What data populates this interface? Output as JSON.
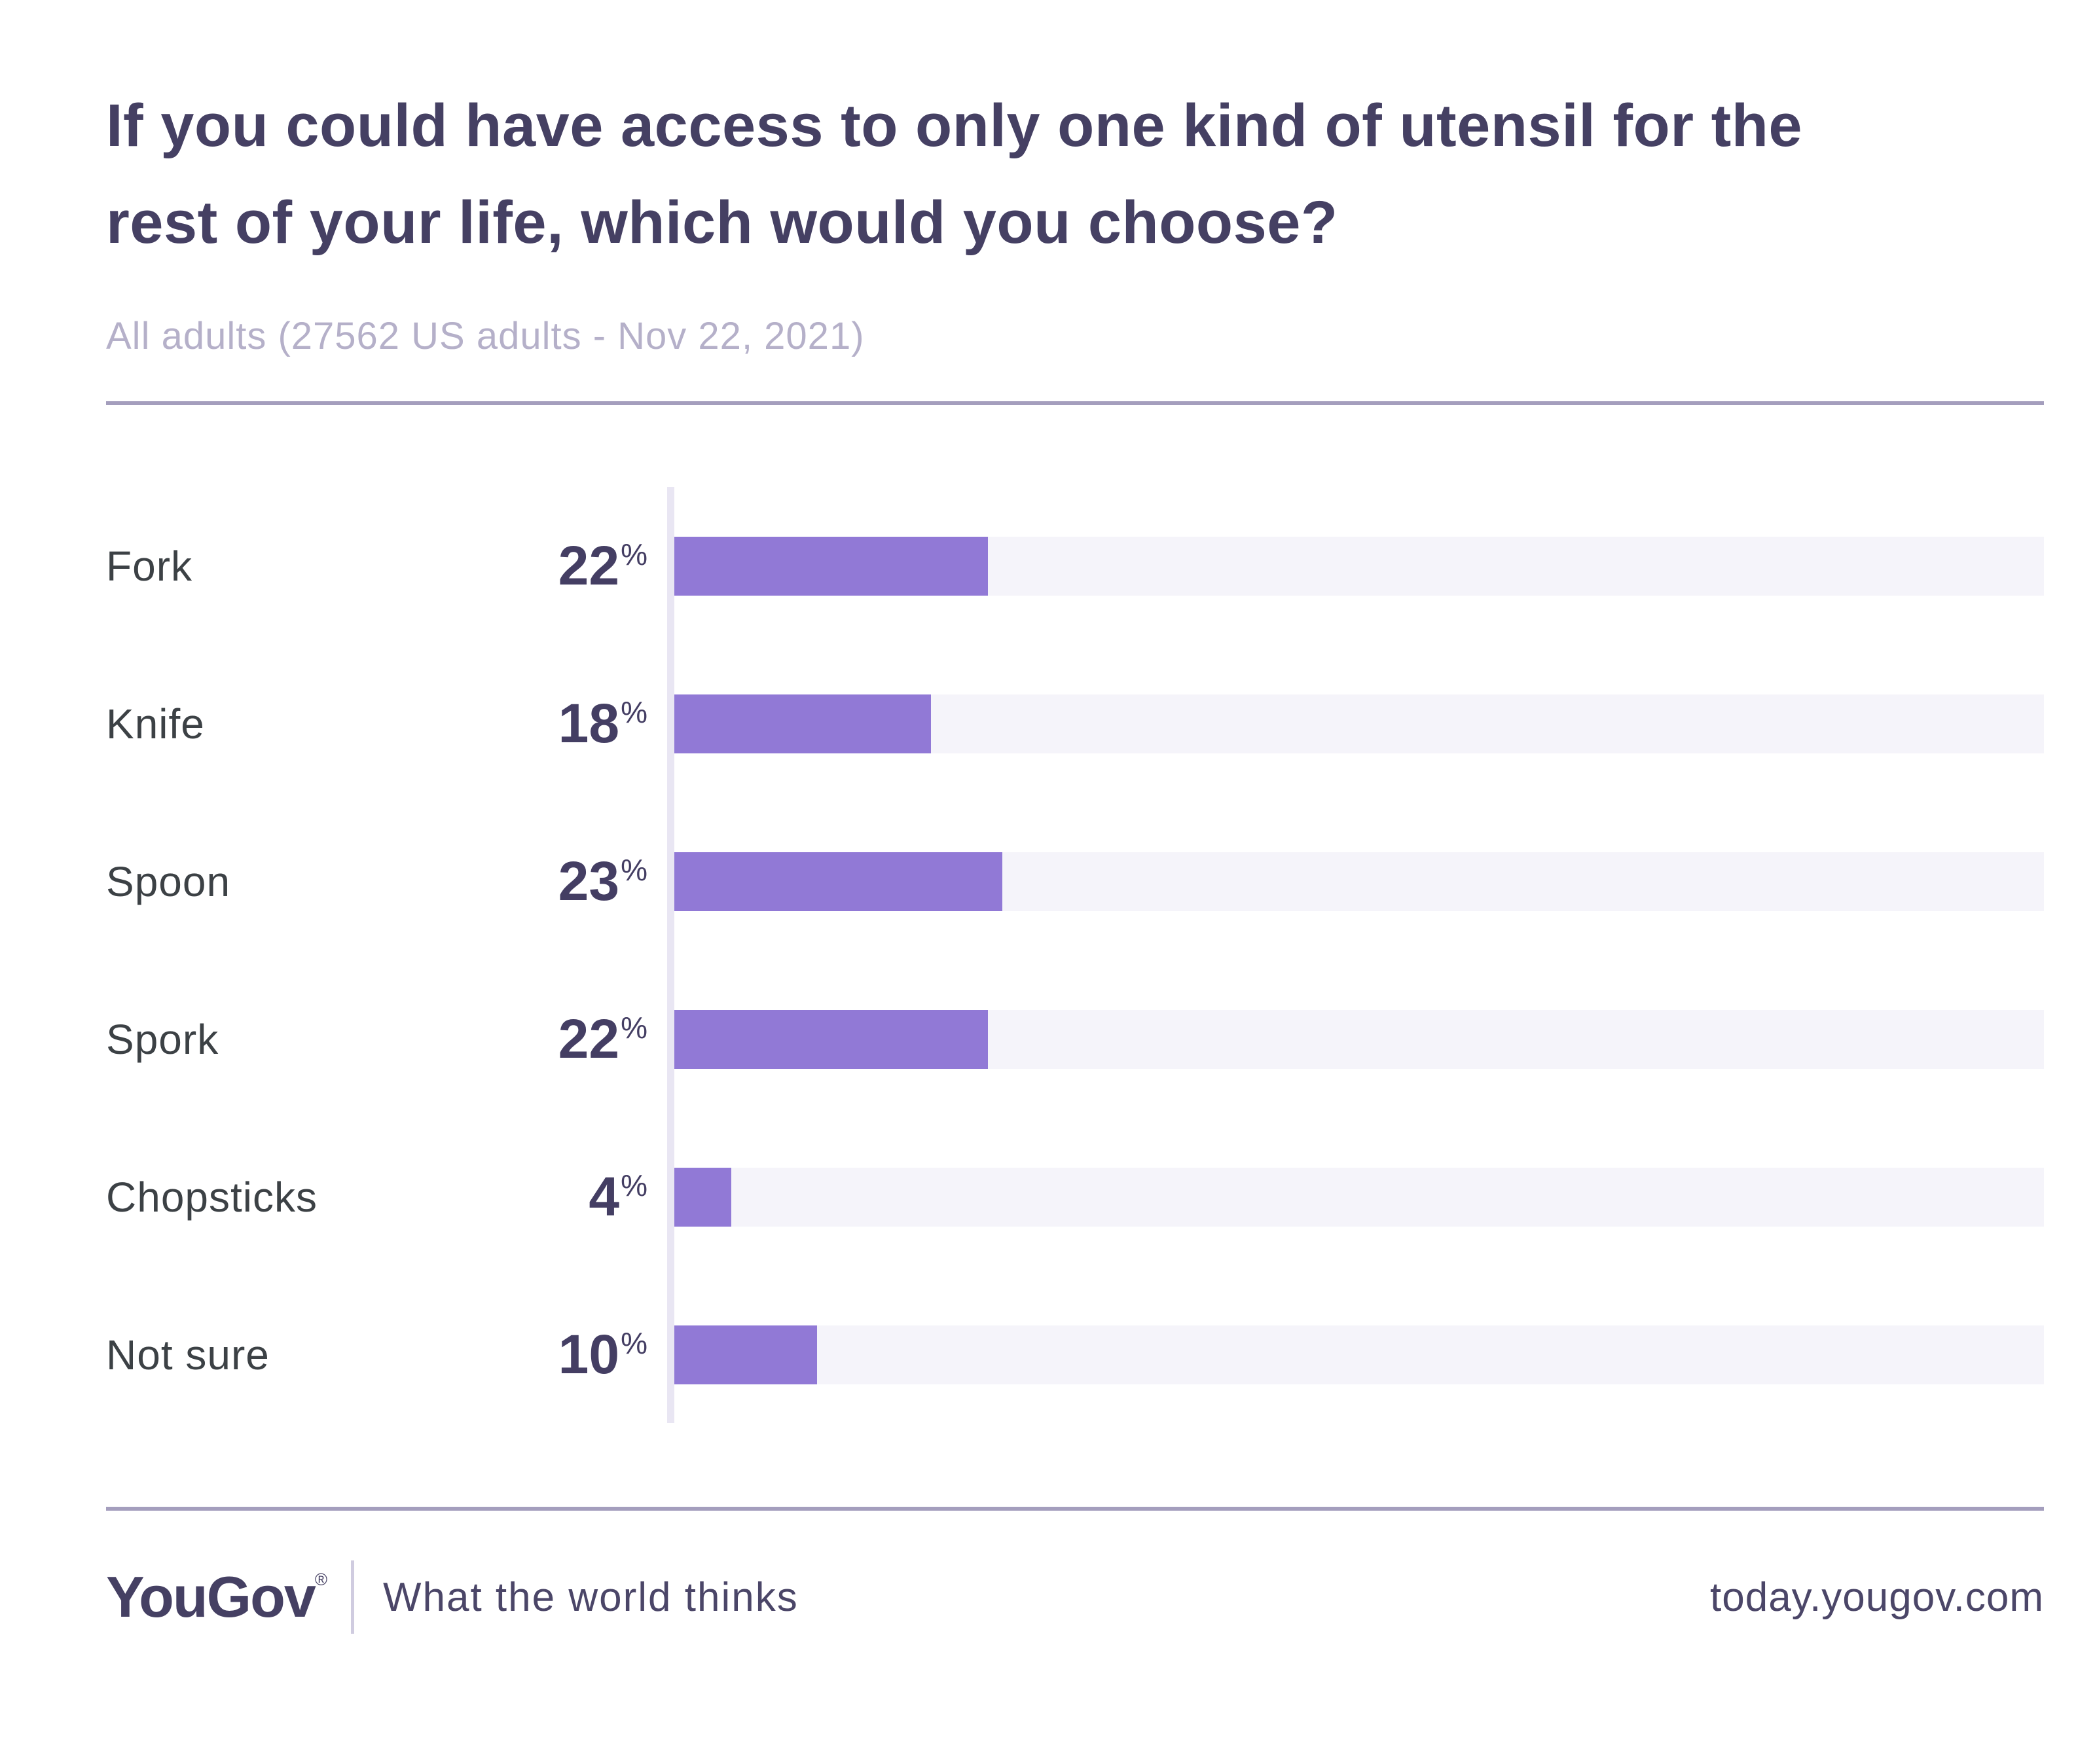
{
  "header": {
    "title_line1": "If you could have access to only one kind of utensil for the",
    "title_line2": "rest of your life, which would you choose?",
    "subtitle": "All adults (27562 US adults - Nov 22, 2021)"
  },
  "chart_data": {
    "type": "bar",
    "orientation": "horizontal",
    "title": "If you could have access to only one kind of utensil for the rest of your life, which would you choose?",
    "subtitle": "All adults (27562 US adults - Nov 22, 2021)",
    "categories": [
      "Fork",
      "Knife",
      "Spoon",
      "Spork",
      "Chopsticks",
      "Not sure"
    ],
    "values": [
      22,
      18,
      23,
      22,
      4,
      10
    ],
    "unit": "%",
    "xlim": [
      0,
      96
    ],
    "grid": false,
    "legend": false,
    "bar_color": "#9179D6",
    "track_color": "#F5F4FA",
    "axis_line_color": "#E9E6F3",
    "value_label_color": "#443E63",
    "category_label_color": "#3C4145"
  },
  "footer": {
    "logo": "YouGov",
    "registered_mark": "®",
    "tagline": "What the world thinks",
    "url": "today.yougov.com"
  },
  "colors": {
    "background": "#FFFFFF",
    "title": "#454063",
    "subtitle": "#B5B0C9",
    "divider": "#A49EBD",
    "footer_divider": "#D0CCE0"
  }
}
